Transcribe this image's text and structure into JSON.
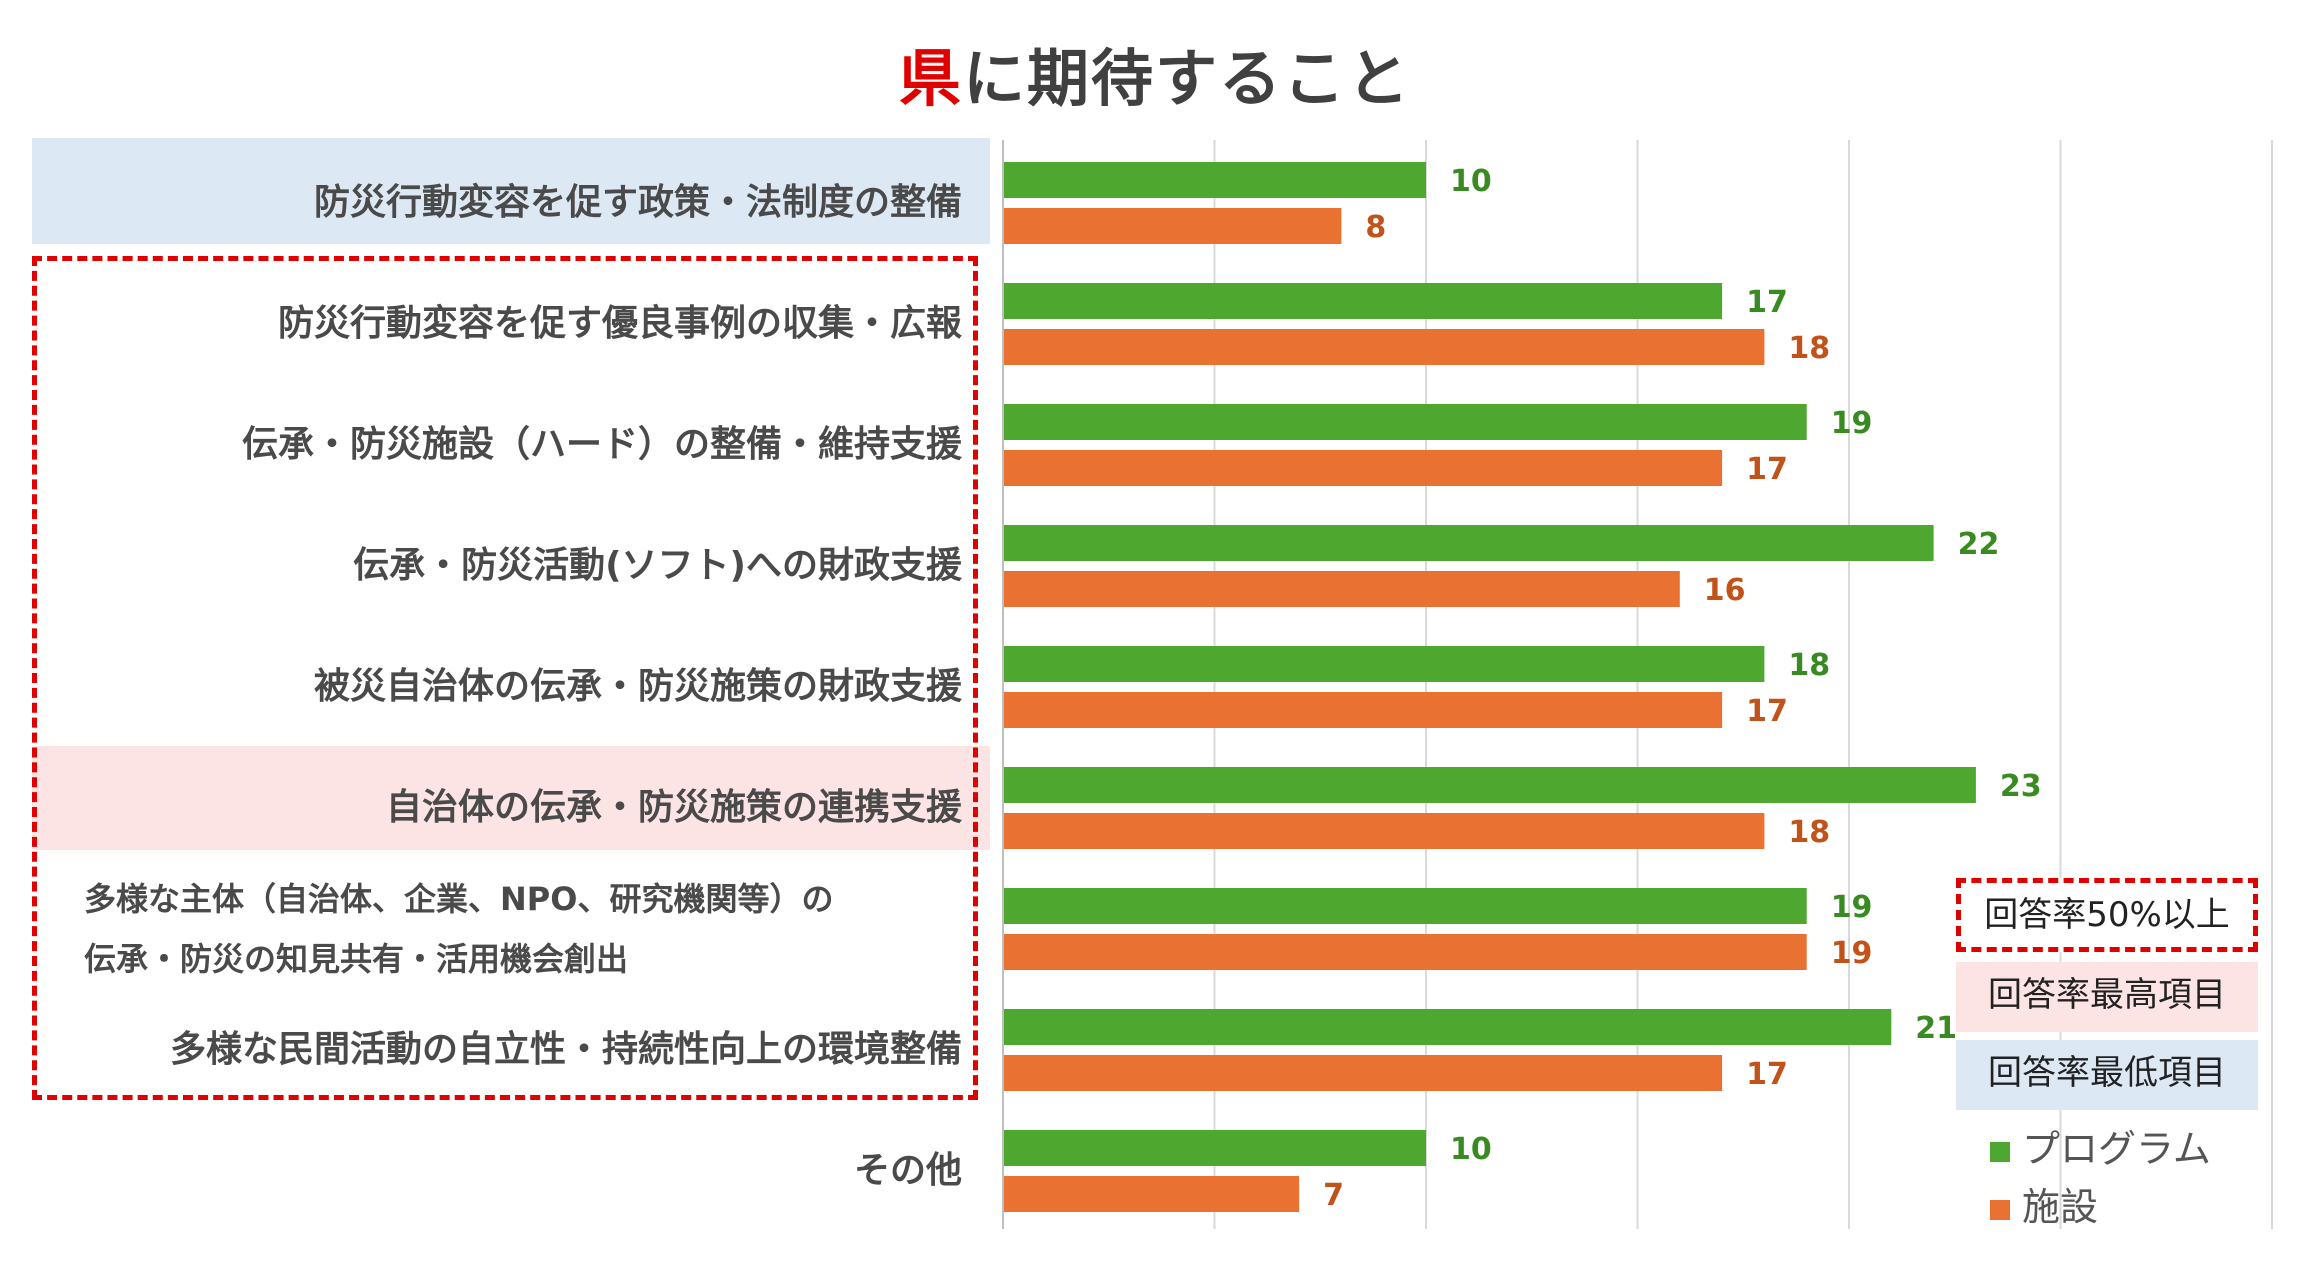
{
  "title_part1": "県",
  "title_part2": "に期待すること",
  "colors": {
    "program": "#4ea72e",
    "facility": "#e97132",
    "program_label": "#3a8a22",
    "facility_label": "#c0521a",
    "highlight_red": "#e00000",
    "band_high": "#fde4e4",
    "band_low": "#dce9f4"
  },
  "chart_data": {
    "type": "bar",
    "orientation": "horizontal",
    "categories": [
      "防災行動変容を促す政策・法制度の整備",
      "防災行動変容を促す優良事例の収集・広報",
      "伝承・防災施設（ハード）の整備・維持支援",
      "伝承・防災活動(ソフト)への財政支援",
      "被災自治体の伝承・防災施策の財政支援",
      "自治体の伝承・防災施策の連携支援",
      "多様な主体（自治体、企業、NPO、研究機関等）の伝承・防災の知見共有・活用機会創出",
      "多様な民間活動の自立性・持続性向上の環境整備",
      "その他"
    ],
    "category_lines": [
      [
        "防災行動変容を促す政策・法制度の整備"
      ],
      [
        "防災行動変容を促す優良事例の収集・広報"
      ],
      [
        "伝承・防災施設（ハード）の整備・維持支援"
      ],
      [
        "伝承・防災活動(ソフト)への財政支援"
      ],
      [
        "被災自治体の伝承・防災施策の財政支援"
      ],
      [
        "自治体の伝承・防災施策の連携支援"
      ],
      [
        "多様な主体（自治体、企業、NPO、研究機関等）の",
        "伝承・防災の知見共有・活用機会創出"
      ],
      [
        "多様な民間活動の自立性・持続性向上の環境整備"
      ],
      [
        "その他"
      ]
    ],
    "series": [
      {
        "name": "プログラム",
        "values": [
          10,
          17,
          19,
          22,
          18,
          23,
          19,
          21,
          10
        ]
      },
      {
        "name": "施設",
        "values": [
          8,
          18,
          17,
          16,
          17,
          18,
          19,
          17,
          7
        ]
      }
    ],
    "xlim": [
      0,
      30
    ],
    "grid": true,
    "legend_position": "bottom-right"
  },
  "legend_boxes": {
    "rate50": "回答率50%以上",
    "highest": "回答率最高項目",
    "lowest": "回答率最低項目"
  }
}
